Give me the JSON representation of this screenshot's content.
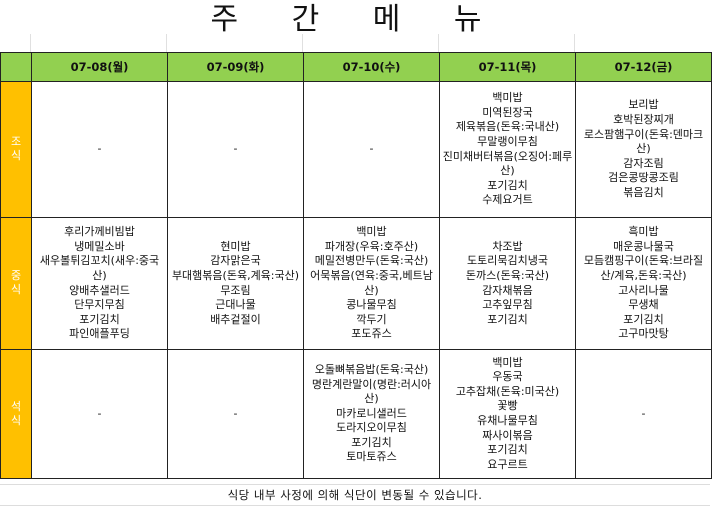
{
  "title": "주 간 메 뉴",
  "colors": {
    "header_bg": "#92D050",
    "side_bg": "#FFC000"
  },
  "days": [
    "07-08(월)",
    "07-09(화)",
    "07-10(수)",
    "07-11(목)",
    "07-12(금)"
  ],
  "meals": [
    {
      "label": "조식",
      "cells": [
        [
          "-"
        ],
        [
          "-"
        ],
        [
          "-"
        ],
        [
          "백미밥",
          "미역된장국",
          "제육볶음(돈육:국내산)",
          "무말랭이무침",
          "진미채버터볶음(오징어:페루산)",
          "포기김치",
          "수제요거트"
        ],
        [
          "보리밥",
          "호박된장찌개",
          "로스팜햄구이(돈육:덴마크산)",
          "감자조림",
          "검은콩땅콩조림",
          "볶음김치"
        ]
      ]
    },
    {
      "label": "중식",
      "cells": [
        [
          "후리가께비빔밥",
          "냉메밀소바",
          "새우볼튀김꼬치(새우:중국산)",
          "양배추샐러드",
          "단무지무침",
          "포기김치",
          "파인애플푸딩"
        ],
        [
          "현미밥",
          "감자맑은국",
          "부대햄볶음(돈육,계육:국산)",
          "무조림",
          "근대나물",
          "배추겉절이"
        ],
        [
          "백미밥",
          "파개장(우육:호주산)",
          "메밀전병만두(돈육:국산)",
          "어묵볶음(연육:중국,베트남산)",
          "콩나물무침",
          "깍두기",
          "포도쥬스"
        ],
        [
          "차조밥",
          "도토리묵김치냉국",
          "돈까스(돈육:국산)",
          "감자채볶음",
          "고추잎무침",
          "포기김치"
        ],
        [
          "흑미밥",
          "매운콩나물국",
          "모듬캠핑구이(돈육:브라질산/계육,돈육:국산)",
          "고사리나물",
          "무생채",
          "포기김치",
          "고구마맛탕"
        ]
      ]
    },
    {
      "label": "석식",
      "cells": [
        [
          "-"
        ],
        [
          "-"
        ],
        [
          "오돌뼈볶음밥(돈육:국산)",
          "명란계란말이(명란:러시아산)",
          "마카로니샐러드",
          "도라지오이무침",
          "포기김치",
          "토마토쥬스"
        ],
        [
          "백미밥",
          "우동국",
          "고추잡채(돈육:미국산)",
          "꽃빵",
          "유채나물무침",
          "짜사이볶음",
          "포기김치",
          "요구르트"
        ],
        [
          "-"
        ]
      ]
    }
  ],
  "footer": "식당 내부 사정에 의해 식단이 변동될 수 있습니다."
}
